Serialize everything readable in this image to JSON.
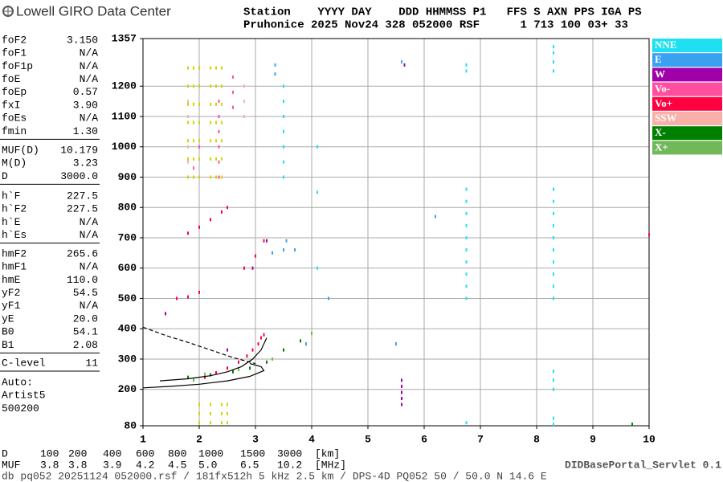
{
  "logo": "Lowell GIRO Data Center",
  "header": {
    "line1": "Station    YYYY DAY    DDD HHMMSS P1   FFS S AXN PPS IGA PS",
    "line2": "Pruhonice 2025 Nov24 328 052000 RSF      1 713 100 03+ 33"
  },
  "parameters": [
    [
      [
        "foF2",
        "3.150"
      ],
      [
        "foF1",
        "N/A"
      ],
      [
        "foF1p",
        "N/A"
      ],
      [
        "foE",
        "N/A"
      ],
      [
        "foEp",
        "0.57"
      ],
      [
        "fxI",
        "3.90"
      ],
      [
        "foEs",
        "N/A"
      ],
      [
        "fmin",
        "1.30"
      ]
    ],
    [
      [
        "MUF(D)",
        "10.179"
      ],
      [
        "M(D)",
        "3.23"
      ],
      [
        "D",
        "3000.0"
      ]
    ],
    [
      [
        "h`F",
        "227.5"
      ],
      [
        "h`F2",
        "227.5"
      ],
      [
        "h`E",
        "N/A"
      ],
      [
        "h`Es",
        "N/A"
      ]
    ],
    [
      [
        "hmF2",
        "265.6"
      ],
      [
        "hmF1",
        "N/A"
      ],
      [
        "hmE",
        "110.0"
      ],
      [
        "yF2",
        "54.5"
      ],
      [
        "yF1",
        "N/A"
      ],
      [
        "yE",
        "20.0"
      ],
      [
        "B0",
        "54.1"
      ],
      [
        "B1",
        "2.08"
      ]
    ],
    [
      [
        "C-level",
        "11"
      ]
    ]
  ],
  "autoscaling": [
    "Auto:",
    "Artist5",
    "500200"
  ],
  "distance_table": {
    "D": {
      "label": "D",
      "values": [
        "100",
        "200",
        "400",
        "600",
        "800",
        "1000",
        "1500",
        "3000"
      ],
      "unit": "[km]"
    },
    "MUF": {
      "label": "MUF",
      "values": [
        "3.8",
        "3.8",
        "3.9",
        "4.2",
        "4.5",
        "5.0",
        "6.5",
        "10.2"
      ],
      "unit": "[MHz]"
    }
  },
  "footer": "db pq052 20251124 052000.rsf / 181fx512h 5 kHz 2.5 km / DPS-4D PQ052 50 / 50.0 N 14.6 E",
  "servlet": "DIDBasePortal_Servlet 0.1",
  "chart_data": {
    "type": "scatter",
    "xlim": [
      1,
      10
    ],
    "xticks": [
      1,
      2,
      3,
      4,
      5,
      6,
      7,
      8,
      9,
      10
    ],
    "ylim": [
      80,
      1357
    ],
    "yticks": [
      80,
      200,
      300,
      400,
      500,
      600,
      700,
      800,
      900,
      1000,
      1100,
      1200,
      1357
    ],
    "grid": true,
    "legend": "right",
    "series": [
      {
        "name": "NNE",
        "color": "#1ee0f0",
        "x": [
          6.75,
          6.75,
          6.75,
          6.75,
          6.75,
          6.75,
          6.75,
          6.75,
          6.75,
          6.75,
          8.3,
          8.3,
          8.3,
          8.3,
          8.3,
          8.3,
          8.3,
          8.3,
          8.3,
          8.3,
          8.3,
          8.3,
          8.3,
          8.3,
          6.75,
          6.75,
          8.3,
          8.3,
          8.3,
          8.3,
          8.3,
          6.75,
          3.5,
          3.5,
          3.5,
          3.5,
          3.5,
          3.5,
          3.5,
          4.1,
          4.1,
          4.1
        ],
        "y": [
          500,
          540,
          580,
          620,
          660,
          700,
          740,
          780,
          820,
          860,
          500,
          540,
          580,
          620,
          660,
          700,
          740,
          780,
          820,
          860,
          1250,
          1280,
          1310,
          1330,
          1250,
          1270,
          200,
          230,
          260,
          85,
          105,
          90,
          900,
          950,
          1000,
          1050,
          1100,
          1150,
          1200,
          1000,
          850,
          600
        ]
      },
      {
        "name": "E",
        "color": "#3aa0f0",
        "x": [
          3.35,
          3.35,
          2.0,
          3.3,
          3.5,
          3.55,
          3.9,
          5.5,
          6.2,
          4.3,
          3.7,
          5.6
        ],
        "y": [
          1270,
          1240,
          1200,
          650,
          660,
          690,
          350,
          350,
          770,
          500,
          660,
          1280
        ]
      },
      {
        "name": "W",
        "color": "#a000a8",
        "x": [
          5.6,
          5.6,
          5.6,
          5.6,
          5.6,
          2.5,
          2.95,
          3.2,
          1.4,
          5.65
        ],
        "y": [
          150,
          170,
          190,
          210,
          230,
          330,
          600,
          690,
          450,
          1270
        ]
      },
      {
        "name": "Vo-",
        "color": "#ff50a0",
        "x": [
          2.35,
          2.35,
          2.35,
          2.35,
          2.35,
          2.35,
          2.6,
          2.6,
          2.6,
          2.0,
          1.9
        ],
        "y": [
          1150,
          1100,
          1050,
          1000,
          950,
          900,
          1230,
          1180,
          1130,
          1000,
          930
        ]
      },
      {
        "name": "Vo+",
        "color": "#ff0040",
        "x": [
          2.1,
          2.3,
          2.5,
          2.7,
          2.85,
          2.95,
          3.05,
          3.1,
          3.15,
          1.8,
          2.0,
          2.2,
          2.4,
          2.5,
          2.8,
          3.0,
          3.15,
          1.6,
          1.8,
          2.0,
          10.0
        ],
        "y": [
          240,
          255,
          270,
          290,
          310,
          330,
          350,
          370,
          380,
          715,
          735,
          760,
          785,
          800,
          600,
          640,
          690,
          500,
          505,
          520,
          710
        ]
      },
      {
        "name": "SSW",
        "color": "#f8b0a8",
        "x": [
          1.8,
          1.8,
          1.8,
          1.8,
          2.8,
          2.8,
          2.8
        ],
        "y": [
          1150,
          1100,
          1000,
          950,
          1100,
          1150,
          1200
        ]
      },
      {
        "name": "X-",
        "color": "#008000",
        "x": [
          1.8,
          2.2,
          2.6,
          2.9,
          3.2,
          3.5,
          3.8,
          9.7
        ],
        "y": [
          240,
          248,
          258,
          270,
          290,
          330,
          360,
          85
        ]
      },
      {
        "name": "X+",
        "color": "#70b858",
        "x": [
          1.9,
          2.1,
          2.7,
          3.3,
          4.0
        ],
        "y": [
          230,
          250,
          265,
          300,
          385
        ]
      },
      {
        "color": "#d4d400",
        "x": [
          1.8,
          1.8,
          1.8,
          1.8,
          1.8,
          1.8,
          1.8,
          1.9,
          1.9,
          1.9,
          1.9,
          1.9,
          1.9,
          1.9,
          2.0,
          2.0,
          2.0,
          2.0,
          2.0,
          2.0,
          2.0,
          2.2,
          2.2,
          2.2,
          2.2,
          2.2,
          2.2,
          2.2,
          2.3,
          2.3,
          2.3,
          2.3,
          2.3,
          2.3,
          2.3,
          2.4,
          2.4,
          2.4,
          2.4,
          2.4,
          2.4,
          2.4,
          2.0,
          2.0,
          2.0,
          2.2,
          2.2,
          2.2,
          2.4,
          2.4,
          2.4,
          2.5,
          2.5,
          2.5
        ],
        "y": [
          900,
          960,
          1020,
          1080,
          1140,
          1200,
          1260,
          900,
          960,
          1020,
          1080,
          1140,
          1200,
          1260,
          900,
          960,
          1020,
          1080,
          1140,
          1200,
          1260,
          900,
          960,
          1020,
          1080,
          1140,
          1200,
          1260,
          900,
          960,
          1020,
          1080,
          1140,
          1200,
          1260,
          900,
          960,
          1020,
          1080,
          1140,
          1200,
          1260,
          90,
          120,
          150,
          90,
          120,
          150,
          90,
          120,
          150,
          90,
          120,
          150
        ]
      }
    ],
    "curves": [
      {
        "style": "solid",
        "x": [
          1.0,
          1.5,
          2.0,
          2.5,
          2.9,
          3.15,
          3.1,
          2.9
        ],
        "y": [
          205,
          210,
          217,
          228,
          243,
          262,
          275,
          285
        ]
      },
      {
        "style": "solid",
        "x": [
          1.3,
          1.8,
          2.2,
          2.5,
          2.75,
          2.95,
          3.1,
          3.2
        ],
        "y": [
          228,
          235,
          245,
          258,
          275,
          300,
          330,
          370
        ]
      },
      {
        "style": "dashed",
        "x": [
          1.0,
          1.4,
          1.8,
          2.2,
          2.6,
          3.0
        ],
        "y": [
          405,
          378,
          355,
          330,
          305,
          285
        ]
      }
    ]
  }
}
